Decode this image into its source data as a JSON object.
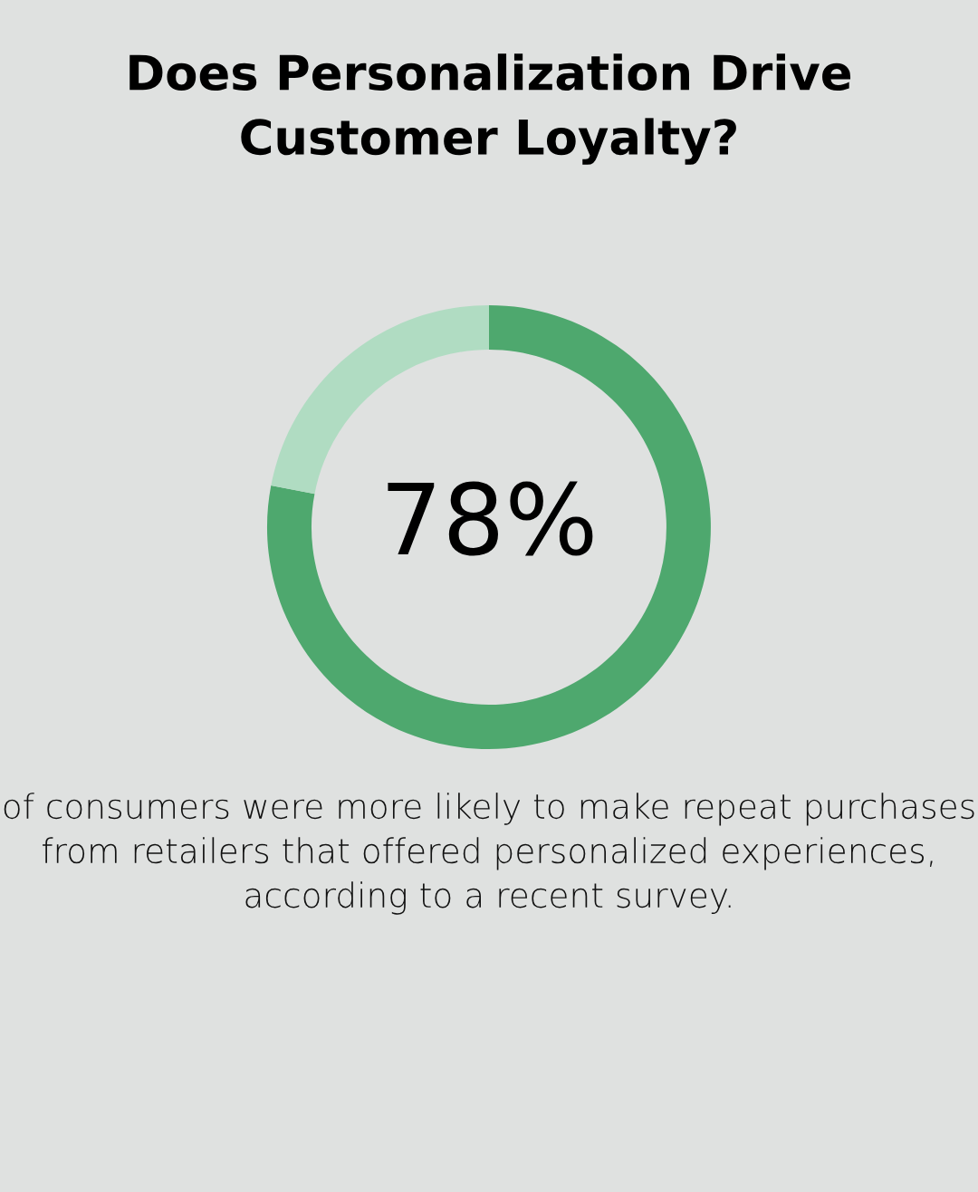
{
  "chart_data": {
    "type": "donut",
    "title": "Does Personalization Drive Customer Loyalty?",
    "categories": [
      null,
      null
    ],
    "values": [
      78,
      22
    ],
    "colors": [
      "#4ea86e",
      "#b0dcc2"
    ],
    "value_labels": [
      "78%",
      null
    ],
    "annotations": [
      "of consumers were more likely to make repeat purchases from retailers that offered personalized experiences, according to a recent survey."
    ]
  }
}
